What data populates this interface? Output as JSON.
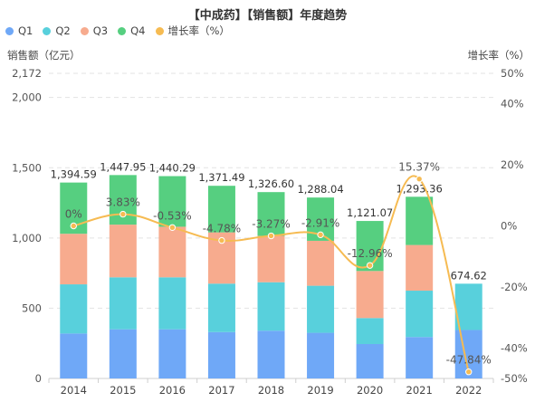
{
  "title": "【中成药】【销售额】年度趋势",
  "legend": [
    {
      "label": "Q1",
      "color": "#6fa8f7"
    },
    {
      "label": "Q2",
      "color": "#58d0dc"
    },
    {
      "label": "Q3",
      "color": "#f7ab8e"
    },
    {
      "label": "Q4",
      "color": "#56cf80"
    },
    {
      "label": "增长率（%）",
      "color": "#f6bb52"
    }
  ],
  "left_axis_title": "销售额（亿元）",
  "right_axis_title": "增长率（%）",
  "chart_data": {
    "type": "bar",
    "stacked": true,
    "categories": [
      "2014",
      "2015",
      "2016",
      "2017",
      "2018",
      "2019",
      "2020",
      "2021",
      "2022"
    ],
    "series": [
      {
        "name": "Q1",
        "color": "#6fa8f7",
        "values": [
          320,
          350,
          350,
          330,
          340,
          325,
          245,
          295,
          345
        ]
      },
      {
        "name": "Q2",
        "color": "#58d0dc",
        "values": [
          350,
          370,
          370,
          345,
          345,
          335,
          185,
          330,
          329.62
        ]
      },
      {
        "name": "Q3",
        "color": "#f7ab8e",
        "values": [
          360,
          375,
          360,
          365,
          330,
          320,
          335,
          325,
          0
        ]
      },
      {
        "name": "Q4",
        "color": "#56cf80",
        "values": [
          364.59,
          352.95,
          360.29,
          331.49,
          311.6,
          308.04,
          356.07,
          343.36,
          0
        ]
      }
    ],
    "totals": [
      1394.59,
      1447.95,
      1440.29,
      1371.49,
      1326.6,
      1288.04,
      1121.07,
      1293.36,
      674.62
    ],
    "total_labels": [
      "1,394.59",
      "1,447.95",
      "1,440.29",
      "1,371.49",
      "1,326.60",
      "1,288.04",
      "1,121.07",
      "1,293.36",
      "674.62"
    ],
    "growth": {
      "name": "增长率（%）",
      "type": "line",
      "smooth": true,
      "color": "#f6bb52",
      "values": [
        0,
        3.83,
        -0.53,
        -4.78,
        -3.27,
        -2.91,
        -12.96,
        15.37,
        -47.84
      ],
      "labels": [
        "0%",
        "3.83%",
        "-0.53%",
        "-4.78%",
        "-3.27%",
        "-2.91%",
        "-12.96%",
        "15.37%",
        "-47.84%"
      ]
    },
    "y_left": {
      "min": 0,
      "max": 2172,
      "ticks": [
        0,
        500,
        1000,
        1500,
        2000,
        2172
      ],
      "tick_labels": [
        "0",
        "500",
        "1,000",
        "1,500",
        "2,000",
        "2,172"
      ]
    },
    "y_right": {
      "min": -50,
      "max": 50,
      "ticks": [
        -50,
        -40,
        -20,
        0,
        20,
        40,
        50
      ],
      "tick_labels": [
        "-50%",
        "-40%",
        "-20%",
        "0%",
        "20%",
        "40%",
        "50%"
      ]
    },
    "grid": true,
    "legend_position": "top-left"
  }
}
